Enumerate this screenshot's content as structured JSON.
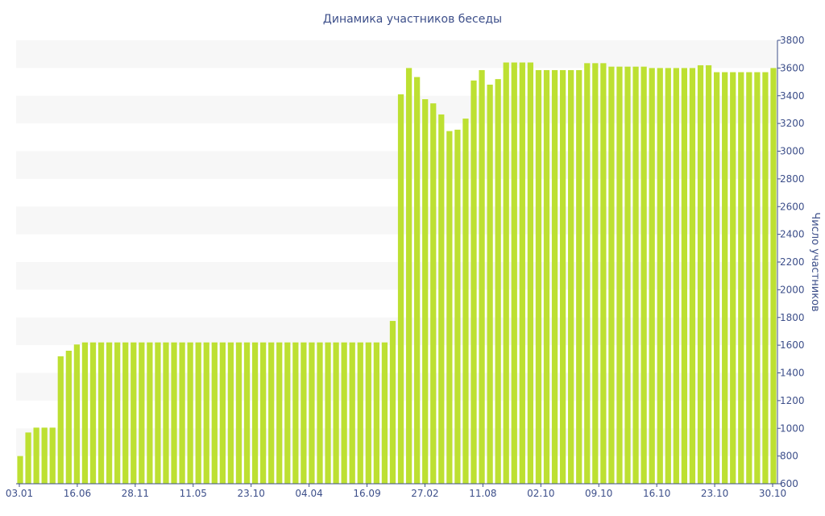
{
  "colors": {
    "bar": "#bde032",
    "band": "#f7f7f7",
    "axis": "#3d4f8a",
    "text": "#3d4f8a",
    "background": "#ffffff"
  },
  "chart_data": {
    "type": "bar",
    "title": "Динамика участников беседы",
    "xlabel": "",
    "ylabel": "Число участников",
    "ylim": [
      600,
      3800
    ],
    "y_ticks": [
      600,
      800,
      1000,
      1200,
      1400,
      1600,
      1800,
      2000,
      2200,
      2400,
      2600,
      2800,
      3000,
      3200,
      3400,
      3600,
      3800
    ],
    "y_axis_side": "right",
    "grid": "alternating horizontal bands",
    "legend": "none",
    "x_tick_labels": [
      "03.01",
      "16.06",
      "28.11",
      "11.05",
      "23.10",
      "04.04",
      "16.09",
      "27.02",
      "11.08",
      "02.10",
      "09.10",
      "16.10",
      "23.10",
      "30.10"
    ],
    "values": [
      800,
      970,
      1005,
      1005,
      1005,
      1520,
      1560,
      1605,
      1620,
      1620,
      1620,
      1620,
      1620,
      1620,
      1620,
      1620,
      1620,
      1620,
      1620,
      1620,
      1620,
      1620,
      1620,
      1620,
      1620,
      1620,
      1620,
      1620,
      1620,
      1620,
      1620,
      1620,
      1620,
      1620,
      1620,
      1620,
      1620,
      1620,
      1620,
      1620,
      1620,
      1620,
      1620,
      1620,
      1620,
      1620,
      1775,
      3410,
      3600,
      3535,
      3375,
      3345,
      3265,
      3145,
      3155,
      3235,
      3510,
      3585,
      3480,
      3520,
      3640,
      3640,
      3640,
      3640,
      3585,
      3585,
      3585,
      3585,
      3585,
      3585,
      3635,
      3635,
      3635,
      3610,
      3610,
      3610,
      3610,
      3610,
      3600,
      3600,
      3600,
      3600,
      3600,
      3600,
      3620,
      3620,
      3570,
      3570,
      3570,
      3570,
      3570,
      3570,
      3570,
      3600
    ]
  }
}
